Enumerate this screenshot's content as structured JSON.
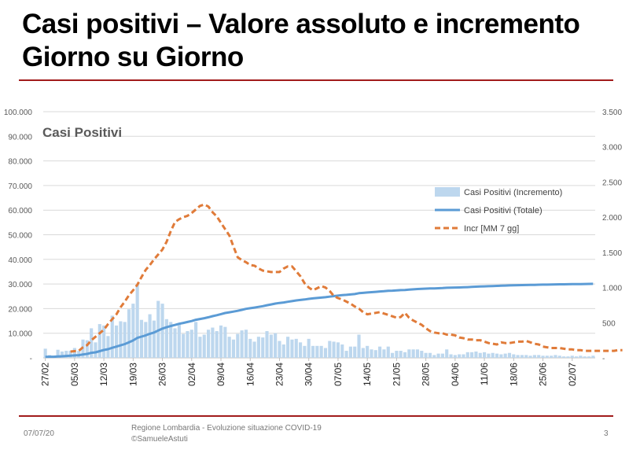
{
  "slide": {
    "title": "Casi positivi – Valore assoluto e incremento Giorno su Giorno",
    "footer_date": "07/07/20",
    "footer_source_line1": "Regione Lombardia - Evoluzione situazione COVID-19",
    "footer_source_line2": "©SamueleAstuti",
    "page_number": "3"
  },
  "colors": {
    "rule": "#a11b1b",
    "bars": "#bdd7ee",
    "total_line": "#5b9bd5",
    "mm7_line": "#e07b39",
    "grid": "#d9d9d9"
  },
  "chart_data": {
    "type": "bar",
    "title": "Casi Positivi",
    "grid": true,
    "legend_position": "right",
    "x_tick_labels": [
      "27/02",
      "05/03",
      "12/03",
      "19/03",
      "26/03",
      "02/04",
      "09/04",
      "16/04",
      "23/04",
      "30/04",
      "07/05",
      "14/05",
      "21/05",
      "28/05",
      "04/06",
      "11/06",
      "18/06",
      "25/06",
      "02/07"
    ],
    "left_axis": {
      "range": [
        0,
        100000
      ],
      "tick_labels": [
        "-",
        "10.000",
        "20.000",
        "30.000",
        "40.000",
        "50.000",
        "60.000",
        "70.000",
        "80.000",
        "90.000",
        "100.000"
      ]
    },
    "right_axis": {
      "range": [
        0,
        3500
      ],
      "tick_labels": [
        "-",
        "500",
        "1.000",
        "1.500",
        "2.000",
        "2.500",
        "3.000",
        "3.500"
      ]
    },
    "start_date": "27/02",
    "series": [
      {
        "name": "Casi Positivi (Incremento)",
        "type": "bar",
        "axis": "right",
        "values": [
          130,
          40,
          10,
          115,
          90,
          100,
          100,
          140,
          100,
          260,
          250,
          420,
          220,
          480,
          460,
          310,
          600,
          460,
          520,
          510,
          690,
          770,
          1050,
          540,
          510,
          620,
          530,
          810,
          770,
          550,
          510,
          420,
          480,
          340,
          380,
          400,
          510,
          300,
          330,
          400,
          430,
          380,
          460,
          440,
          300,
          260,
          340,
          390,
          400,
          270,
          230,
          300,
          290,
          380,
          330,
          350,
          240,
          190,
          300,
          260,
          270,
          220,
          170,
          270,
          170,
          170,
          170,
          140,
          240,
          230,
          220,
          190,
          100,
          160,
          160,
          330,
          140,
          170,
          120,
          110,
          160,
          120,
          160,
          70,
          100,
          100,
          80,
          120,
          120,
          120,
          100,
          70,
          70,
          40,
          60,
          60,
          120,
          50,
          40,
          50,
          50,
          80,
          80,
          90,
          70,
          80,
          60,
          70,
          60,
          50,
          60,
          70,
          50,
          40,
          40,
          40,
          30,
          40,
          40,
          30,
          30,
          30,
          40,
          30,
          20,
          20,
          30,
          20,
          30,
          20,
          20,
          30
        ]
      },
      {
        "name": "Casi Positivi (Totale)",
        "type": "line",
        "axis": "left",
        "values": [
          400,
          440,
          450,
          560,
          650,
          760,
          860,
          1000,
          1100,
          1360,
          1610,
          2030,
          2250,
          2730,
          3190,
          3500,
          4100,
          4560,
          5080,
          5590,
          6280,
          7050,
          8100,
          8640,
          9150,
          9770,
          10300,
          11110,
          11880,
          12430,
          12940,
          13360,
          13840,
          14180,
          14560,
          14960,
          15470,
          15770,
          16100,
          16500,
          16930,
          17310,
          17770,
          18210,
          18510,
          18770,
          19110,
          19500,
          19900,
          20170,
          20400,
          20700,
          20990,
          21370,
          21700,
          22050,
          22290,
          22480,
          22780,
          23040,
          23310,
          23530,
          23700,
          23970,
          24140,
          24310,
          24480,
          24620,
          24860,
          25090,
          25310,
          25500,
          25600,
          25760,
          25920,
          26250,
          26390,
          26560,
          26680,
          26790,
          26950,
          27070,
          27230,
          27300,
          27400,
          27500,
          27580,
          27700,
          27820,
          27940,
          28040,
          28110,
          28180,
          28220,
          28280,
          28340,
          28460,
          28510,
          28550,
          28600,
          28650,
          28730,
          28810,
          28900,
          28970,
          29050,
          29110,
          29180,
          29240,
          29290,
          29350,
          29420,
          29470,
          29510,
          29550,
          29590,
          29620,
          29660,
          29700,
          29730,
          29760,
          29790,
          29830,
          29860,
          29880,
          29900,
          29930,
          29950,
          29980,
          30000,
          30020,
          30050
        ]
      },
      {
        "name": "Incr [MM 7 gg]",
        "type": "line",
        "axis": "right",
        "dashed": true,
        "start_index": 6,
        "values": [
          90,
          95,
          100,
          150,
          180,
          250,
          300,
          350,
          400,
          480,
          550,
          620,
          720,
          800,
          890,
          960,
          1040,
          1150,
          1250,
          1320,
          1400,
          1470,
          1540,
          1650,
          1800,
          1930,
          1970,
          2000,
          2020,
          2060,
          2110,
          2160,
          2180,
          2150,
          2070,
          2010,
          1920,
          1830,
          1740,
          1580,
          1430,
          1390,
          1360,
          1320,
          1310,
          1270,
          1240,
          1230,
          1220,
          1220,
          1220,
          1270,
          1300,
          1300,
          1230,
          1160,
          1060,
          1000,
          960,
          990,
          1020,
          1000,
          950,
          880,
          850,
          830,
          800,
          770,
          730,
          700,
          650,
          620,
          630,
          640,
          650,
          630,
          610,
          590,
          570,
          580,
          640,
          570,
          530,
          500,
          470,
          420,
          380,
          360,
          350,
          350,
          330,
          330,
          320,
          290,
          280,
          260,
          260,
          250,
          250,
          230,
          210,
          200,
          190,
          220,
          210,
          210,
          220,
          230,
          230,
          240,
          220,
          200,
          190,
          160,
          150,
          140,
          140,
          140,
          130,
          120,
          120,
          110,
          110,
          100,
          100,
          100,
          100,
          100,
          100,
          100,
          100,
          110,
          110
        ]
      }
    ]
  }
}
